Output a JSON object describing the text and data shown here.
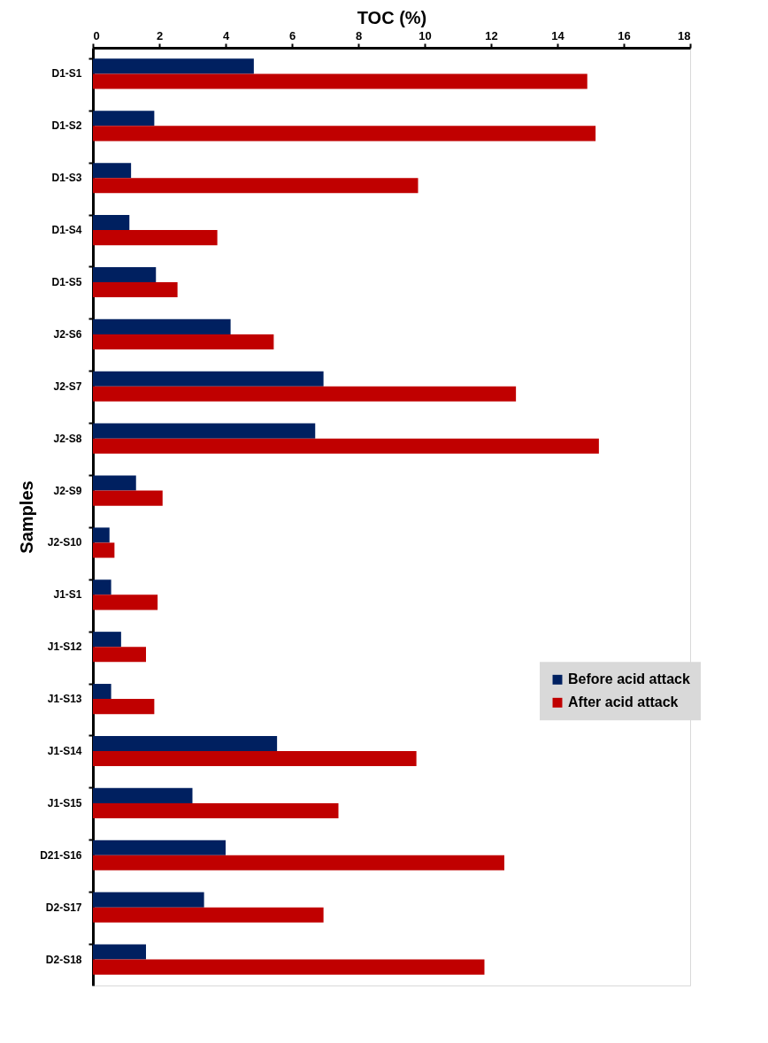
{
  "chart_data": {
    "type": "bar",
    "orientation": "horizontal",
    "xlabel": "TOC (%)",
    "ylabel": "Samples",
    "categories": [
      "D1-S1",
      "D1-S2",
      "D1-S3",
      "D1-S4",
      "D1-S5",
      "J2-S6",
      "J2-S7",
      "J2-S8",
      "J2-S9",
      "J2-S10",
      "J1-S1",
      "J1-S12",
      "J1-S13",
      "J1-S14",
      "J1-S15",
      "D21-S16",
      "D2-S17",
      "D2-S18"
    ],
    "series": [
      {
        "name": "Before acid attack",
        "color": "#002060",
        "values": [
          4.85,
          1.85,
          1.15,
          1.1,
          1.9,
          4.15,
          6.95,
          6.7,
          1.3,
          0.5,
          0.55,
          0.85,
          0.55,
          5.55,
          3.0,
          4.0,
          3.35,
          1.6
        ]
      },
      {
        "name": "After acid attack",
        "color": "#c00000",
        "values": [
          14.9,
          15.15,
          9.8,
          3.75,
          2.55,
          5.45,
          12.75,
          15.25,
          2.1,
          0.65,
          1.95,
          1.6,
          1.85,
          9.75,
          7.4,
          12.4,
          6.95,
          11.8
        ]
      }
    ],
    "xlim": [
      0,
      18
    ],
    "xticks": [
      0,
      2,
      4,
      6,
      8,
      10,
      12,
      14,
      16,
      18
    ],
    "grid": false,
    "legend": "right"
  }
}
